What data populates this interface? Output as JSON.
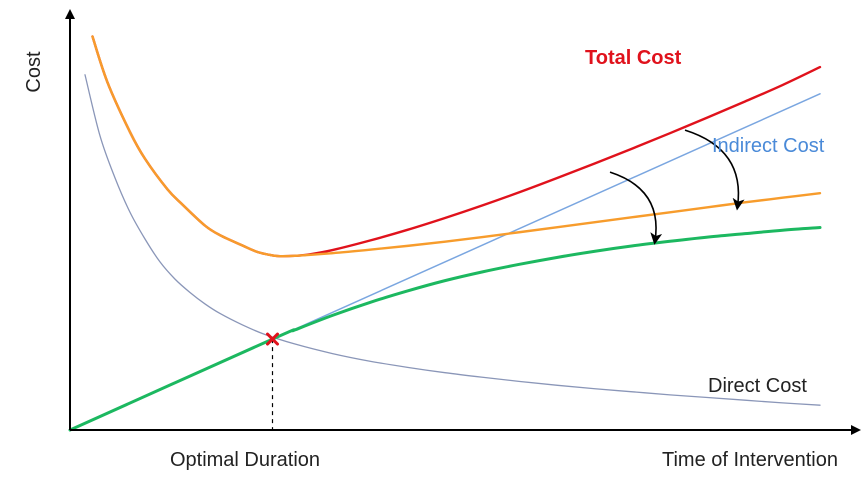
{
  "chart_data": {
    "type": "line",
    "title": "",
    "xlabel": "Time of Intervention",
    "ylabel": "Cost",
    "x_tick_labels": [
      "Optimal Duration"
    ],
    "ticks_numeric": false,
    "grid": false,
    "legend": "none",
    "series_labels": {
      "total": "Total Cost",
      "indirect": "Indirect Cost",
      "direct": "Direct Cost"
    },
    "series": [
      {
        "key": "direct",
        "color": "#8a96b8",
        "x": [
          2,
          4,
          6,
          8,
          10,
          12,
          14,
          16,
          18,
          20,
          23,
          26,
          30,
          35,
          40,
          45,
          50,
          55,
          60,
          65,
          70,
          75,
          80,
          85,
          90,
          95,
          100
        ],
        "y": [
          93,
          77,
          66,
          57,
          50,
          44,
          39.5,
          36,
          33,
          30.5,
          27.5,
          25,
          22.5,
          20,
          18,
          16.4,
          15,
          13.8,
          12.7,
          11.7,
          10.8,
          10,
          9.2,
          8.5,
          7.8,
          7.1,
          6.5
        ]
      },
      {
        "key": "indirect",
        "color": "#7aa6e0",
        "x": [
          0,
          100
        ],
        "y": [
          0,
          88
        ]
      },
      {
        "key": "total",
        "color": "#e0121c",
        "x": [
          3,
          5,
          8,
          10,
          13,
          15,
          18,
          20,
          23,
          25,
          27,
          28,
          30,
          32,
          35,
          40,
          45,
          50,
          55,
          60,
          65,
          70,
          75,
          80,
          85,
          90,
          95,
          100
        ],
        "y": [
          103,
          91,
          78,
          71,
          63,
          59,
          53.5,
          51,
          48.3,
          46.6,
          45.7,
          45.5,
          45.6,
          46,
          47.1,
          49.6,
          52.4,
          55.5,
          58.8,
          62.3,
          66,
          69.8,
          73.7,
          77.7,
          81.8,
          86,
          90.3,
          95
        ]
      },
      {
        "key": "adjusted_total",
        "color": "#f79c2c",
        "x": [
          3,
          5,
          8,
          10,
          13,
          15,
          18,
          20,
          23,
          25,
          27,
          28,
          30,
          35,
          40,
          45,
          50,
          55,
          60,
          65,
          70,
          75,
          80,
          85,
          90,
          95,
          100
        ],
        "y": [
          103,
          91,
          78,
          71,
          63,
          59,
          53.5,
          51,
          48.3,
          46.6,
          45.7,
          45.5,
          45.6,
          46.3,
          47.2,
          48.2,
          49.3,
          50.5,
          51.8,
          53.1,
          54.4,
          55.7,
          57,
          58.3,
          59.6,
          60.8,
          62
        ]
      },
      {
        "key": "adjusted_indirect",
        "color": "#1cb860",
        "x": [
          0,
          27,
          30,
          35,
          40,
          45,
          50,
          55,
          60,
          65,
          70,
          75,
          80,
          85,
          90,
          95,
          100
        ],
        "y": [
          0,
          23.8,
          26.2,
          30,
          33.4,
          36.4,
          39.1,
          41.4,
          43.4,
          45.2,
          46.8,
          48.2,
          49.4,
          50.5,
          51.4,
          52.3,
          53
        ]
      }
    ],
    "optimal_duration_x": 27,
    "optimal_duration_y": 23.8,
    "shift_arrows": [
      {
        "from": [
          82,
          78.5
        ],
        "to": [
          89,
          58.5
        ]
      },
      {
        "from": [
          72,
          67.5
        ],
        "to": [
          78,
          49.5
        ]
      }
    ]
  },
  "colors": {
    "axis": "#000000",
    "total_cost_label": "#e0121c",
    "indirect_cost_label": "#4a8ad8",
    "text": "#222222",
    "marker": "#e0121c"
  }
}
